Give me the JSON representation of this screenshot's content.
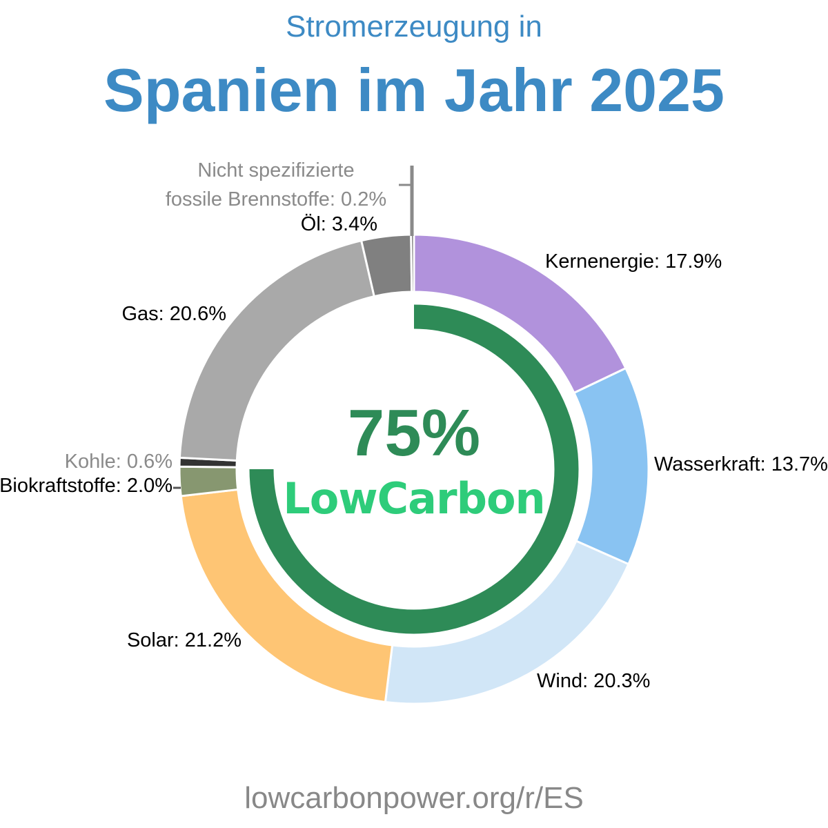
{
  "header": {
    "subtitle": "Stromerzeugung in",
    "title": "Spanien im Jahr 2025"
  },
  "center": {
    "percent": "75%",
    "brand": "LowCarbon",
    "low_carbon_share": 0.75,
    "ring_color": "#2e8b57",
    "brand_color": "#2ecc7a"
  },
  "footer": {
    "url": "lowcarbonpower.org/r/ES"
  },
  "chart_data": {
    "type": "pie",
    "title": "Spanien im Jahr 2025",
    "subtitle": "Stromerzeugung in",
    "slices": [
      {
        "name": "Kernenergie",
        "value": 17.9,
        "color": "#b192dc",
        "label": "Kernenergie: 17.9%",
        "muted": false
      },
      {
        "name": "Wasserkraft",
        "value": 13.7,
        "color": "#89c3f2",
        "label": "Wasserkraft: 13.7%",
        "muted": false
      },
      {
        "name": "Wind",
        "value": 20.3,
        "color": "#d1e6f7",
        "label": "Wind: 20.3%",
        "muted": false
      },
      {
        "name": "Solar",
        "value": 21.2,
        "color": "#fec574",
        "label": "Solar: 21.2%",
        "muted": false
      },
      {
        "name": "Biokraftstoffe",
        "value": 2.0,
        "color": "#879770",
        "label": "Biokraftstoffe: 2.0%",
        "muted": false
      },
      {
        "name": "Kohle",
        "value": 0.6,
        "color": "#333333",
        "label": "Kohle: 0.6%",
        "muted": true
      },
      {
        "name": "Gas",
        "value": 20.6,
        "color": "#a9a9a9",
        "label": "Gas: 20.6%",
        "muted": false
      },
      {
        "name": "Öl",
        "value": 3.4,
        "color": "#808080",
        "label": "Öl: 3.4%",
        "muted": false
      },
      {
        "name": "Nicht spezifizierte fossile Brennstoffe",
        "value": 0.2,
        "color": "#606060",
        "label_lines": [
          "Nicht spezifizierte",
          "fossile Brennstoffe: 0.2%"
        ],
        "muted": true
      }
    ]
  }
}
